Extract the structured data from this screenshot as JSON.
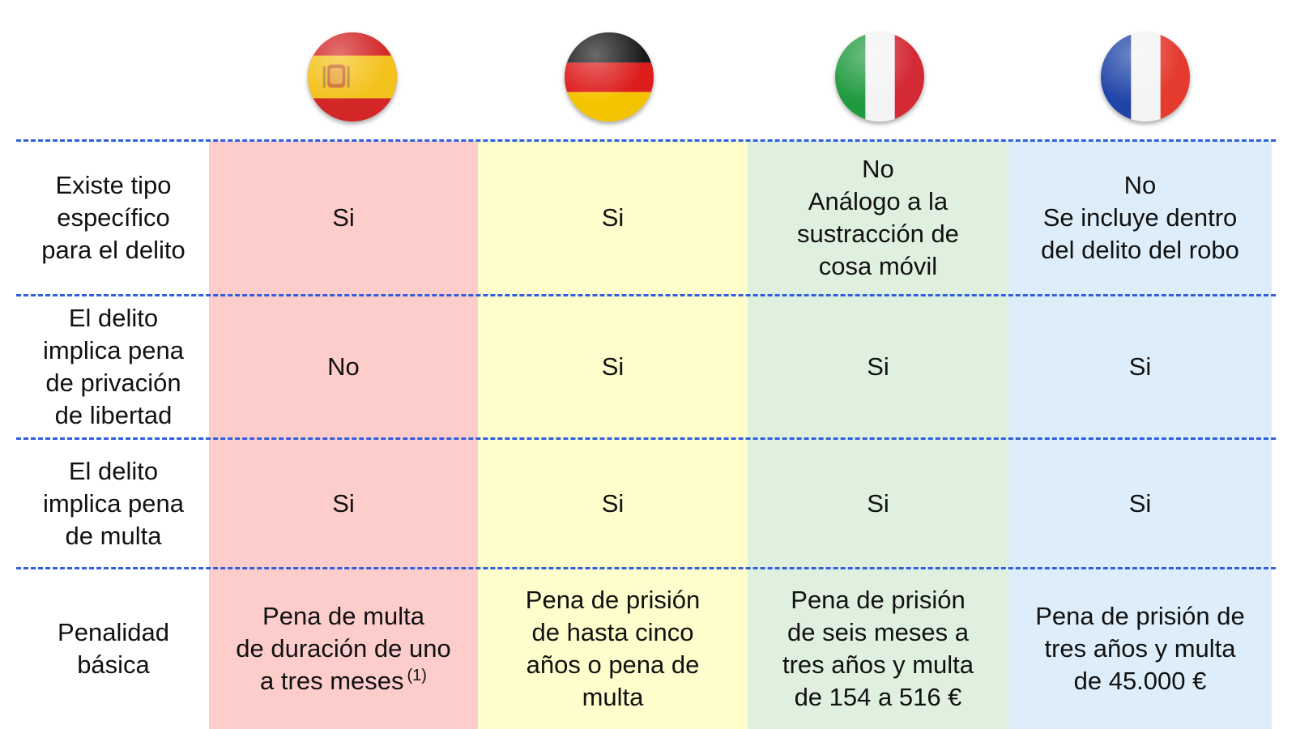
{
  "colors": {
    "spain_column": "#fccdcb",
    "germany_column": "#fefdcc",
    "italy_column": "#dff1de",
    "france_column": "#ddeefa",
    "divider": "#2f5ee0"
  },
  "flags": [
    {
      "country_icon": "spain-flag-icon"
    },
    {
      "country_icon": "germany-flag-icon"
    },
    {
      "country_icon": "italy-flag-icon"
    },
    {
      "country_icon": "france-flag-icon"
    }
  ],
  "rows": [
    {
      "label": "Existe tipo\nespecífico\npara el delito",
      "spain": "Si",
      "germany": "Si",
      "italy": "No\nAnálogo a la\nsustracción de\ncosa móvil",
      "france": "No\nSe incluye dentro\ndel delito del robo"
    },
    {
      "label": "El delito\nimplica pena\nde privación\nde libertad",
      "spain": "No",
      "germany": "Si",
      "italy": "Si",
      "france": "Si"
    },
    {
      "label": "El delito\nimplica pena\nde multa",
      "spain": "Si",
      "germany": "Si",
      "italy": "Si",
      "france": "Si"
    },
    {
      "label": "Penalidad\nbásica",
      "spain": "Pena de multa\nde duración de uno\na tres meses",
      "spain_footnote": "(1)",
      "germany": "Pena de prisión\nde hasta cinco\naños o pena de\nmulta",
      "italy": "Pena de prisión\nde seis meses a\ntres años y multa\nde 154 a 516 €",
      "france": "Pena de prisión de\ntres años y multa\nde 45.000 €"
    }
  ]
}
